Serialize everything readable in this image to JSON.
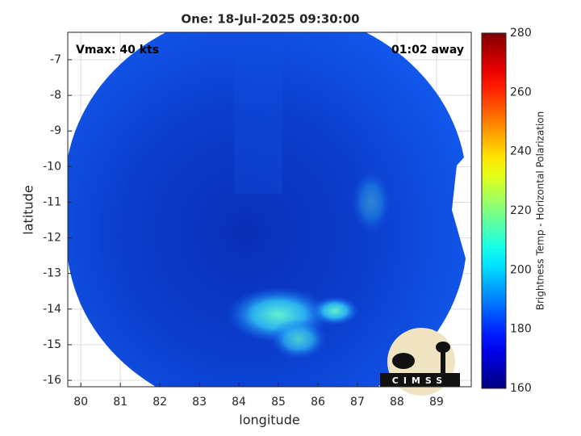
{
  "chart_data": {
    "type": "image",
    "title": "One: 18-Jul-2025 09:30:00",
    "xlabel": "longitude",
    "ylabel": "latitude",
    "xlim": [
      79.67,
      89.88
    ],
    "xticks": [
      80,
      81,
      82,
      83,
      84,
      85,
      86,
      87,
      88,
      89
    ],
    "ylim": [
      -16.18,
      -6.23
    ],
    "yticks": [
      -16,
      -15,
      -14,
      -13,
      -12,
      -11,
      -10,
      -9,
      -8,
      -7
    ],
    "grid": true,
    "annotations": [
      "Vmax: 40 kts",
      "01:02 away"
    ],
    "colorbar": {
      "label": "Brightness Temp - Horizontal Polarization",
      "colormap": "jet",
      "clim": [
        160,
        280
      ],
      "ticks": [
        160,
        180,
        200,
        220,
        240,
        260,
        280
      ]
    },
    "logo": "CIMSS"
  }
}
